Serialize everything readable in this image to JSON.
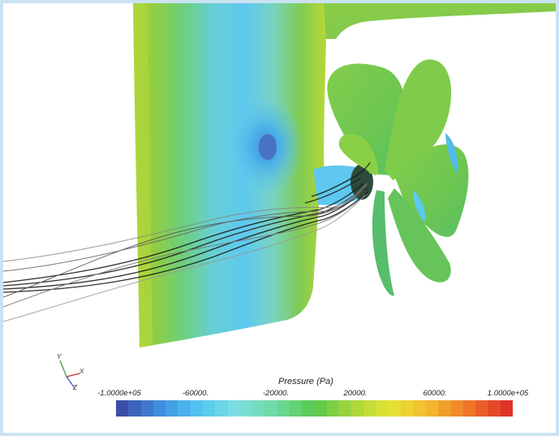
{
  "legend": {
    "title": "Pressure (Pa)",
    "ticks": [
      "-1.0000e+05",
      "-60000.",
      "-20000.",
      "20000.",
      "60000.",
      "1.0000e+05"
    ],
    "min": -100000,
    "max": 100000,
    "bands": 32,
    "colormap": [
      "#3b4fa8",
      "#3f8fe0",
      "#52c6f0",
      "#7fe0e2",
      "#6fd9a0",
      "#57c94d",
      "#a8d63a",
      "#e6e335",
      "#f3b82e",
      "#ef7728",
      "#e0332a"
    ]
  },
  "axes": {
    "y": "Y",
    "x": "X",
    "z": "Z"
  },
  "colors": {
    "frame": "#c9e3f2",
    "background": "#ffffff",
    "hull_green": "#7cc94a",
    "low_pressure": "#52c6f0",
    "streamline": "#1a1a1a"
  }
}
